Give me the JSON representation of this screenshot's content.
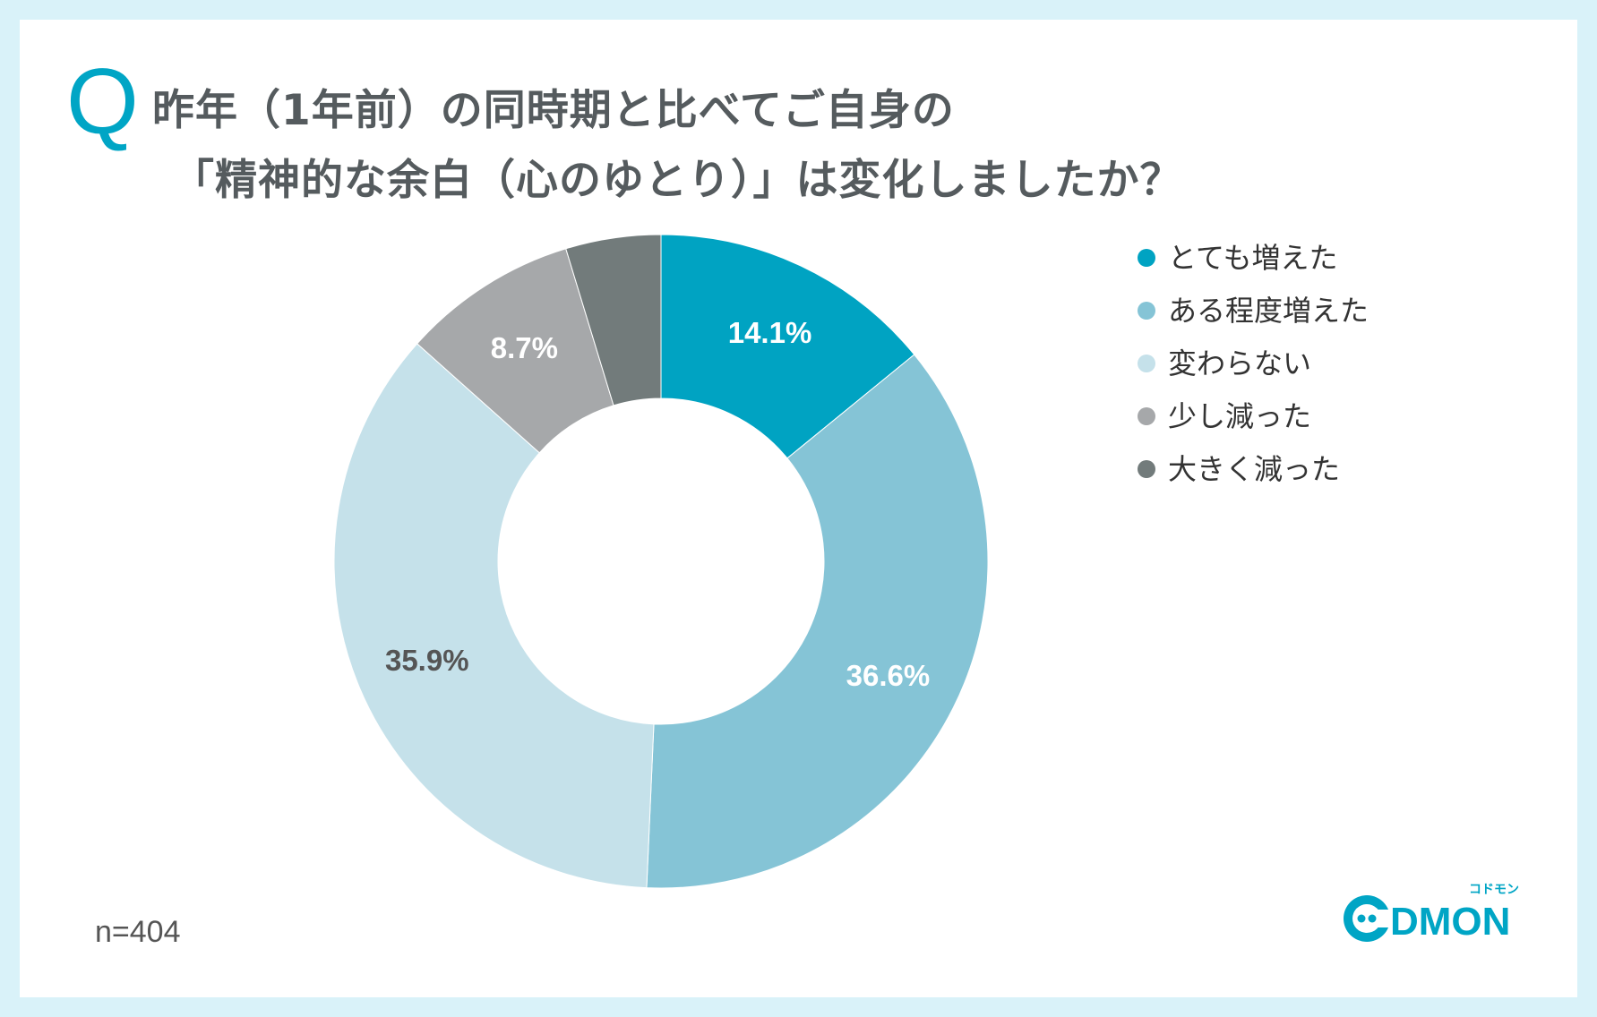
{
  "question": {
    "mark": "Q",
    "line1": "昨年（1年前）の同時期と比べてご自身の",
    "line2": "「精神的な余白（心のゆとり）」は変化しましたか？"
  },
  "note": "n=404",
  "logo": {
    "text": "DMON",
    "tagline": "コドモン"
  },
  "colors": {
    "background": "#d9f2f9",
    "accent": "#00a5c5"
  },
  "chart_data": {
    "type": "pie",
    "variant": "donut",
    "legend_position": "right",
    "categories": [
      "とても増えた",
      "ある程度増えた",
      "変わらない",
      "少し減った",
      "大きく減った"
    ],
    "values": [
      14.1,
      36.6,
      35.9,
      8.7,
      4.7
    ],
    "data_labels": [
      "14.1%",
      "36.6%",
      "35.9%",
      "8.7%",
      ""
    ],
    "colors": [
      "#00a3c2",
      "#85c4d6",
      "#c5e1ea",
      "#a6a8aa",
      "#727b7b"
    ],
    "label_colors": [
      "#ffffff",
      "#ffffff",
      "#555555",
      "#ffffff",
      "#ffffff"
    ]
  }
}
